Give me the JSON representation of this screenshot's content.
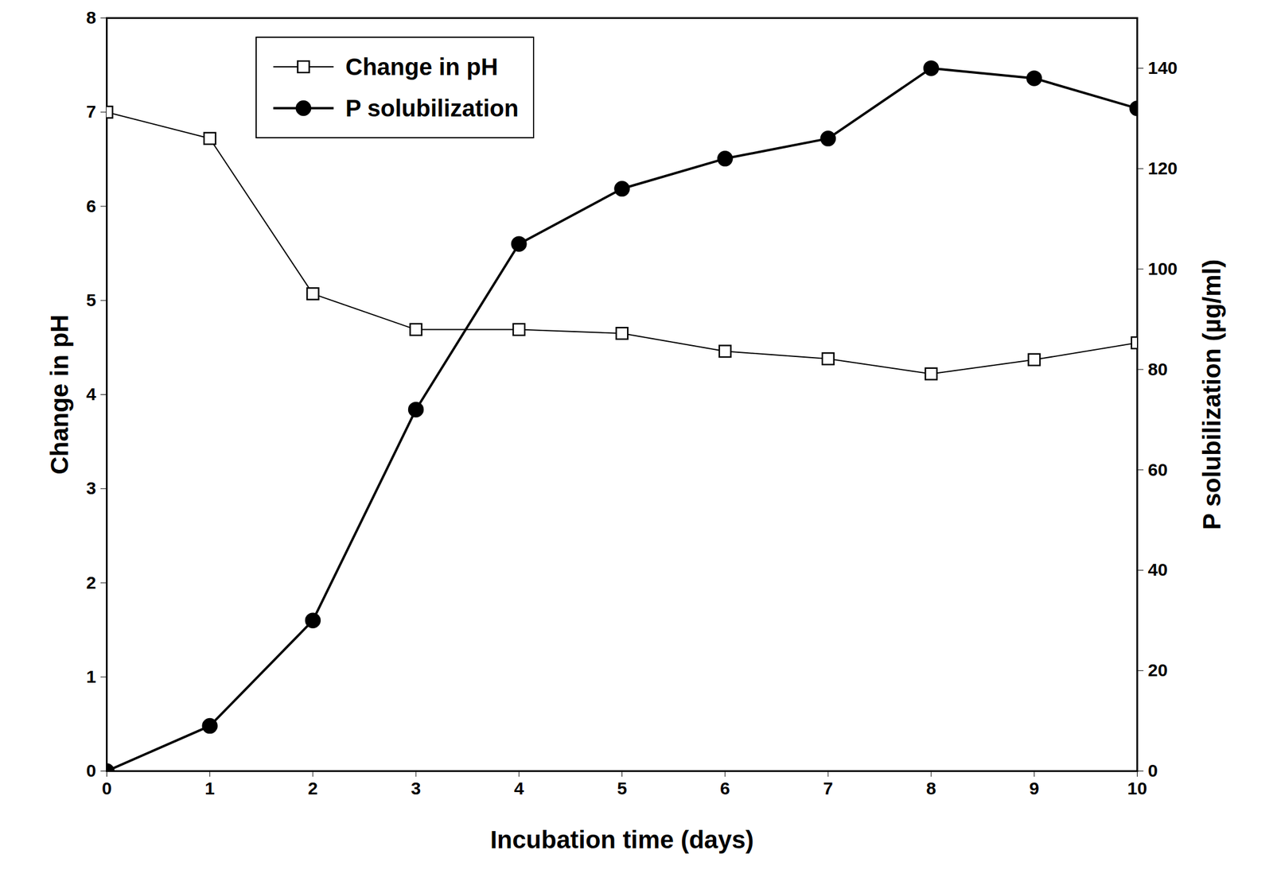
{
  "chart_data": {
    "type": "line",
    "xlabel": "Incubation time (days)",
    "ylabel": "Change in pH",
    "y2label": "P solubilization (µg/ml)",
    "x": [
      0,
      1,
      2,
      3,
      4,
      5,
      6,
      7,
      8,
      9,
      10
    ],
    "series": [
      {
        "name": "Change in pH",
        "color": "#000000",
        "marker": "square-open",
        "line_style": "solid",
        "values": [
          7.0,
          6.72,
          5.07,
          4.69,
          4.69,
          4.65,
          4.46,
          4.38,
          4.22,
          4.37,
          4.55
        ]
      },
      {
        "name": "P solubilization",
        "color": "#000000",
        "marker": "circle",
        "line_style": "solid",
        "axis": "y2",
        "values": [
          0,
          9,
          30,
          72,
          105,
          116,
          122,
          126,
          140,
          138,
          132
        ]
      }
    ],
    "xlim": [
      0,
      10
    ],
    "xticks": [
      0,
      1,
      2,
      3,
      4,
      5,
      6,
      7,
      8,
      9,
      10
    ],
    "ylim": [
      0,
      8
    ],
    "yticks": [
      0,
      1,
      2,
      3,
      4,
      5,
      6,
      7,
      8
    ],
    "y2lim": [
      0,
      150
    ],
    "y2ticks": [
      0,
      20,
      40,
      60,
      80,
      100,
      120,
      140
    ],
    "legend": "upper left"
  }
}
